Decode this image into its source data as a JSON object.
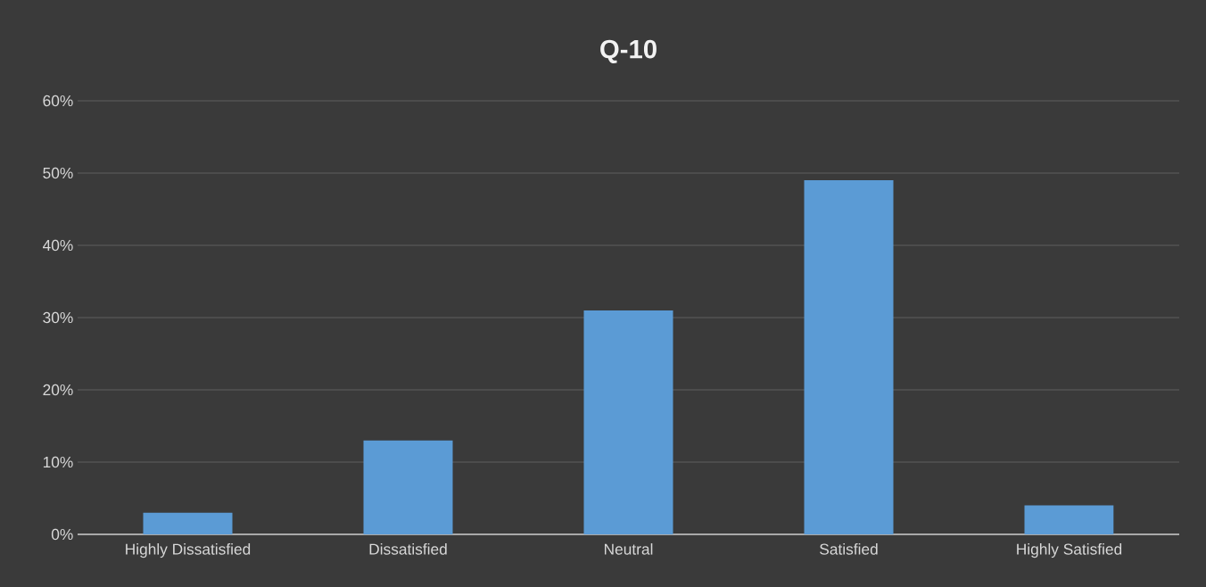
{
  "chart_data": {
    "type": "bar",
    "title": "Q-10",
    "categories": [
      "Highly Dissatisfied",
      "Dissatisfied",
      "Neutral",
      "Satisfied",
      "Highly Satisfied"
    ],
    "values": [
      3,
      13,
      31,
      49,
      4
    ],
    "color": "#5b9bd5",
    "ylim": [
      0,
      60
    ],
    "yticks": [
      {
        "value": 0,
        "label": "0%"
      },
      {
        "value": 10,
        "label": "10%"
      },
      {
        "value": 20,
        "label": "20%"
      },
      {
        "value": 30,
        "label": "30%"
      },
      {
        "value": 40,
        "label": "40%"
      },
      {
        "value": 50,
        "label": "50%"
      },
      {
        "value": 60,
        "label": "60%"
      }
    ],
    "grid": "y"
  }
}
